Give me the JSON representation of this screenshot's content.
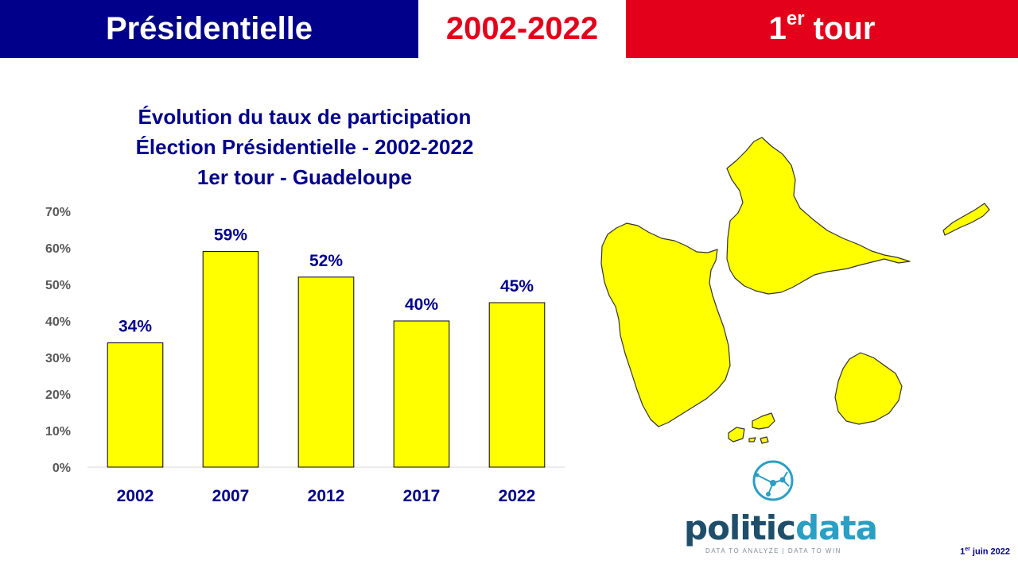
{
  "header": {
    "left": "Présidentielle",
    "middle": "2002-2022",
    "right_main": "1",
    "right_sup": "er",
    "right_rest": " tour"
  },
  "chart_data": {
    "type": "bar",
    "title_lines": [
      "Évolution du taux de participation",
      "Élection Présidentielle - 2002-2022",
      "1er tour - Guadeloupe"
    ],
    "categories": [
      "2002",
      "2007",
      "2012",
      "2017",
      "2022"
    ],
    "values": [
      34,
      59,
      52,
      40,
      45
    ],
    "data_labels": [
      "34%",
      "59%",
      "52%",
      "40%",
      "45%"
    ],
    "ylim": [
      0,
      70
    ],
    "yticks": [
      "0%",
      "10%",
      "20%",
      "30%",
      "40%",
      "50%",
      "60%",
      "70%"
    ],
    "bar_color": "#ffff00",
    "text_color": "#00008b",
    "grid": false
  },
  "map": {
    "fill": "#ffff00",
    "icon": "guadeloupe-map"
  },
  "logo": {
    "word_a": "politic",
    "word_b": "data",
    "tagline": "DATA TO ANALYZE | DATA TO WIN"
  },
  "footer": {
    "date_day": "1",
    "date_sup": "er",
    "date_rest": " juin 2022"
  },
  "colors": {
    "blue": "#00008b",
    "red": "#e3001b",
    "yellow": "#ffff00"
  }
}
